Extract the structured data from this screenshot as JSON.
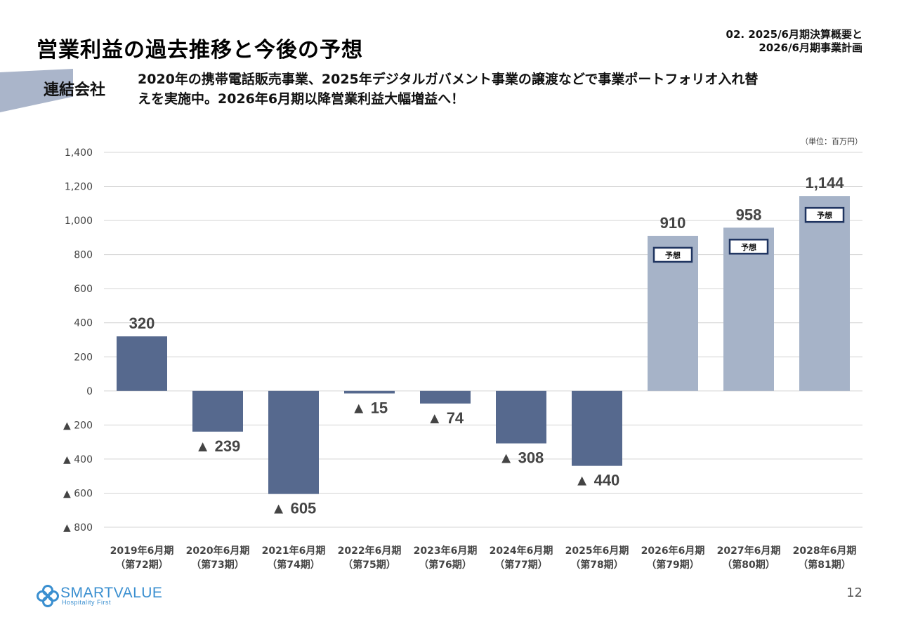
{
  "header": {
    "title": "営業利益の過去推移と今後の予想",
    "section_line1": "02. 2025/6月期決算概要と",
    "section_line2": "2026/6月期事業計画",
    "company_label": "連結会社",
    "headline_line1": "2020年の携帯電話販売事業、2025年デジタルガバメント事業の譲渡などで事業ポートフォリオ入れ替",
    "headline_line2": "えを実施中。2026年6月期以降営業利益大幅増益へ！"
  },
  "chart_data": {
    "type": "bar",
    "unit_note": "（単位：百万円）",
    "categories": [
      [
        "2019年6月期",
        "（第72期）"
      ],
      [
        "2020年6月期",
        "（第73期）"
      ],
      [
        "2021年6月期",
        "（第74期）"
      ],
      [
        "2022年6月期",
        "（第75期）"
      ],
      [
        "2023年6月期",
        "（第76期）"
      ],
      [
        "2024年6月期",
        "（第77期）"
      ],
      [
        "2025年6月期",
        "（第78期）"
      ],
      [
        "2026年6月期",
        "（第79期）"
      ],
      [
        "2027年6月期",
        "（第80期）"
      ],
      [
        "2028年6月期",
        "（第81期）"
      ]
    ],
    "values": [
      320,
      -239,
      -605,
      -15,
      -74,
      -308,
      -440,
      910,
      958,
      1144
    ],
    "value_labels": [
      "320",
      "▲ 239",
      "▲ 605",
      "▲ 15",
      "▲ 74",
      "▲ 308",
      "▲ 440",
      "910",
      "958",
      "1,144"
    ],
    "forecast": [
      false,
      false,
      false,
      false,
      false,
      false,
      false,
      true,
      true,
      true
    ],
    "forecast_label": "予想",
    "ylim": [
      -800,
      1400
    ],
    "yticks": [
      1400,
      1200,
      1000,
      800,
      600,
      400,
      200,
      0,
      -200,
      -400,
      -600,
      -800
    ],
    "ytick_labels": [
      "1,400",
      "1,200",
      "1,000",
      "800",
      "600",
      "400",
      "200",
      "0",
      "▲ 200",
      "▲ 400",
      "▲ 600",
      "▲ 800"
    ],
    "grid": true,
    "colors": {
      "actual": "#56698e",
      "forecast": "#a6b3c8",
      "grid": "#d4d4d4",
      "forecast_box_border": "#1f3460"
    }
  },
  "footer": {
    "logo_name": "SMARTVALUE",
    "logo_tagline": "Hospitality First",
    "logo_icon": "clover-icon",
    "page_number": "12"
  }
}
